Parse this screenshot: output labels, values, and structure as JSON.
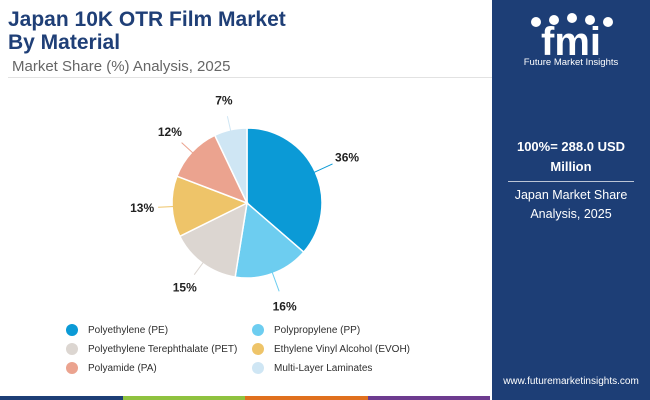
{
  "header": {
    "title_line1": "Japan 10K OTR Film Market",
    "title_line2": "By Material",
    "subtitle": "Market Share (%) Analysis, 2025"
  },
  "chart_data": {
    "type": "pie",
    "title": "Japan 10K OTR Film Market By Material",
    "subtitle": "Market Share (%) Analysis, 2025",
    "categories": [
      "Polyethylene (PE)",
      "Polypropylene (PP)",
      "Polyethylene Terephthalate (PET)",
      "Ethylene Vinyl Alcohol (EVOH)",
      "Polyamide (PA)",
      "Multi-Layer Laminates"
    ],
    "values": [
      36,
      16,
      15,
      13,
      12,
      7
    ],
    "labels": [
      "36%",
      "16%",
      "15%",
      "13%",
      "12%",
      "7%"
    ],
    "colors": [
      "#0b9ad6",
      "#6dcdf0",
      "#dcd6d1",
      "#eec469",
      "#eba38f",
      "#cfe6f4"
    ],
    "legend_position": "bottom"
  },
  "legend": {
    "items": [
      {
        "label": "Polyethylene (PE)",
        "color": "#0b9ad6"
      },
      {
        "label": "Polypropylene (PP)",
        "color": "#6dcdf0"
      },
      {
        "label": "Polyethylene Terephthalate (PET)",
        "color": "#dcd6d1"
      },
      {
        "label": "Ethylene Vinyl Alcohol (EVOH)",
        "color": "#eec469"
      },
      {
        "label": "Polyamide (PA)",
        "color": "#eba38f"
      },
      {
        "label": "Multi-Layer Laminates",
        "color": "#cfe6f4"
      }
    ]
  },
  "panel": {
    "logo_text": "fmi",
    "logo_subtitle": "Future Market Insights",
    "summary_title": "100%= 288.0 USD Million",
    "summary_subtitle": "Japan Market Share Analysis, 2025",
    "website": "www.futuremarketinsights.com"
  },
  "colors": {
    "panel_bg": "#1d3e76",
    "title": "#1f3f77",
    "bottom_bar": [
      "#1d3e76",
      "#8fc23f",
      "#e0701e",
      "#6d3b8f"
    ]
  }
}
